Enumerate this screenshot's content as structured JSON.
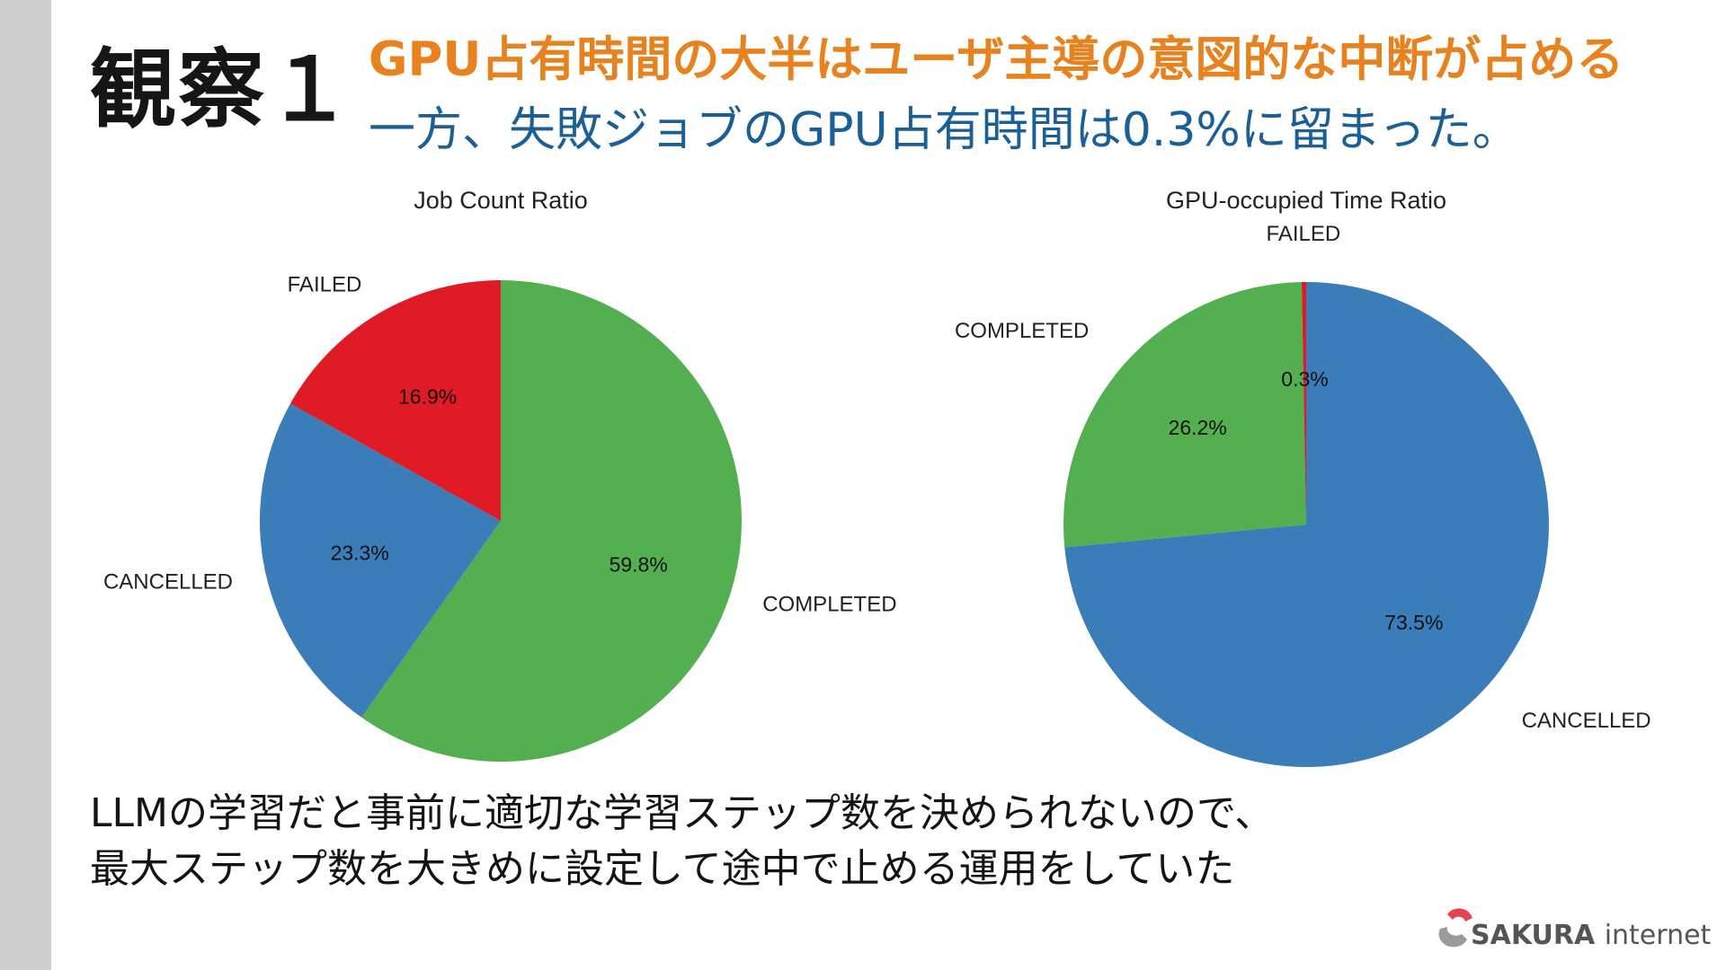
{
  "slide": {
    "title": "観察１",
    "headline": "GPU占有時間の大半はユーザ主導の意図的な中断が占める",
    "subheadline": "一方、失敗ジョブのGPU占有時間は0.3%に留まった。",
    "body_lines": [
      "LLMの学習だと事前に適切な学習ステップ数を決められないので、",
      "最大ステップ数を大きめに設定して途中で止める運用をしていた"
    ],
    "logo": {
      "brand": "SAKURA",
      "suffix": "internet"
    },
    "colors": {
      "accent": "#e8821e",
      "subheadline": "#1a5f96"
    }
  },
  "chart_data": [
    {
      "type": "pie",
      "title": "Job Count Ratio",
      "start_angle_deg": 90,
      "direction": "clockwise",
      "slices": [
        {
          "label": "COMPLETED",
          "value": 59.8,
          "display": "59.8%",
          "color": "#54af51"
        },
        {
          "label": "CANCELLED",
          "value": 23.3,
          "display": "23.3%",
          "color": "#3a7db8"
        },
        {
          "label": "FAILED",
          "value": 16.9,
          "display": "16.9%",
          "color": "#e01b25"
        }
      ]
    },
    {
      "type": "pie",
      "title": "GPU-occupied Time Ratio",
      "start_angle_deg": 90,
      "direction": "clockwise",
      "slices": [
        {
          "label": "CANCELLED",
          "value": 73.5,
          "display": "73.5%",
          "color": "#3a7db8"
        },
        {
          "label": "COMPLETED",
          "value": 26.2,
          "display": "26.2%",
          "color": "#54af51"
        },
        {
          "label": "FAILED",
          "value": 0.3,
          "display": "0.3%",
          "color": "#e01b25"
        }
      ]
    }
  ]
}
